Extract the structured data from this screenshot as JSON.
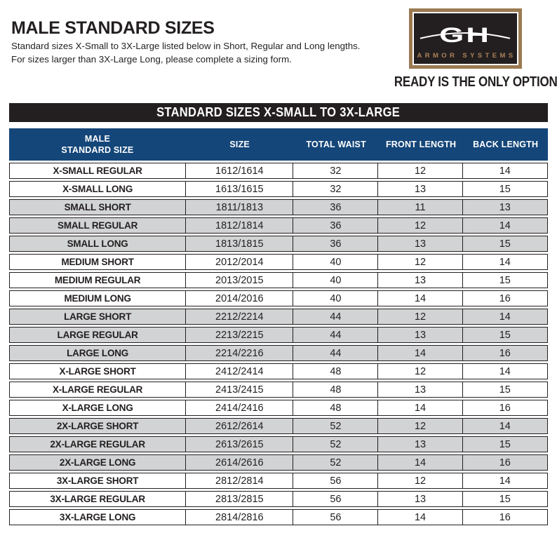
{
  "page": {
    "title": "MALE STANDARD SIZES",
    "subtitle_line1": "Standard sizes X-Small to 3X-Large listed below in Short, Regular and Long lengths.",
    "subtitle_line2": "For sizes larger than 3X-Large Long, please complete a sizing form."
  },
  "logo": {
    "monogram": "GH",
    "name": "ARMOR SYSTEMS",
    "tagline": "READY IS THE ONLY OPTION."
  },
  "table": {
    "band_title": "STANDARD SIZES X-SMALL TO 3X-LARGE",
    "columns": [
      {
        "line1": "MALE",
        "line2": "STANDARD SIZE"
      },
      {
        "label": "SIZE"
      },
      {
        "label": "TOTAL WAIST"
      },
      {
        "label": "FRONT LENGTH"
      },
      {
        "label": "BACK LENGTH"
      }
    ],
    "rows": [
      {
        "standard_size": "X-SMALL REGULAR",
        "size": "1612/1614",
        "total_waist": "32",
        "front_length": "12",
        "back_length": "14",
        "shaded": false
      },
      {
        "standard_size": "X-SMALL LONG",
        "size": "1613/1615",
        "total_waist": "32",
        "front_length": "13",
        "back_length": "15",
        "shaded": false
      },
      {
        "standard_size": "SMALL SHORT",
        "size": "1811/1813",
        "total_waist": "36",
        "front_length": "11",
        "back_length": "13",
        "shaded": true
      },
      {
        "standard_size": "SMALL REGULAR",
        "size": "1812/1814",
        "total_waist": "36",
        "front_length": "12",
        "back_length": "14",
        "shaded": true
      },
      {
        "standard_size": "SMALL LONG",
        "size": "1813/1815",
        "total_waist": "36",
        "front_length": "13",
        "back_length": "15",
        "shaded": true
      },
      {
        "standard_size": "MEDIUM SHORT",
        "size": "2012/2014",
        "total_waist": "40",
        "front_length": "12",
        "back_length": "14",
        "shaded": false
      },
      {
        "standard_size": "MEDIUM REGULAR",
        "size": "2013/2015",
        "total_waist": "40",
        "front_length": "13",
        "back_length": "15",
        "shaded": false
      },
      {
        "standard_size": "MEDIUM LONG",
        "size": "2014/2016",
        "total_waist": "40",
        "front_length": "14",
        "back_length": "16",
        "shaded": false
      },
      {
        "standard_size": "LARGE SHORT",
        "size": "2212/2214",
        "total_waist": "44",
        "front_length": "12",
        "back_length": "14",
        "shaded": true
      },
      {
        "standard_size": "LARGE REGULAR",
        "size": "2213/2215",
        "total_waist": "44",
        "front_length": "13",
        "back_length": "15",
        "shaded": true
      },
      {
        "standard_size": "LARGE LONG",
        "size": "2214/2216",
        "total_waist": "44",
        "front_length": "14",
        "back_length": "16",
        "shaded": true
      },
      {
        "standard_size": "X-LARGE SHORT",
        "size": "2412/2414",
        "total_waist": "48",
        "front_length": "12",
        "back_length": "14",
        "shaded": false
      },
      {
        "standard_size": "X-LARGE REGULAR",
        "size": "2413/2415",
        "total_waist": "48",
        "front_length": "13",
        "back_length": "15",
        "shaded": false
      },
      {
        "standard_size": "X-LARGE LONG",
        "size": "2414/2416",
        "total_waist": "48",
        "front_length": "14",
        "back_length": "16",
        "shaded": false
      },
      {
        "standard_size": "2X-LARGE SHORT",
        "size": "2612/2614",
        "total_waist": "52",
        "front_length": "12",
        "back_length": "14",
        "shaded": true
      },
      {
        "standard_size": "2X-LARGE REGULAR",
        "size": "2613/2615",
        "total_waist": "52",
        "front_length": "13",
        "back_length": "15",
        "shaded": true
      },
      {
        "standard_size": "2X-LARGE LONG",
        "size": "2614/2616",
        "total_waist": "52",
        "front_length": "14",
        "back_length": "16",
        "shaded": true
      },
      {
        "standard_size": "3X-LARGE SHORT",
        "size": "2812/2814",
        "total_waist": "56",
        "front_length": "12",
        "back_length": "14",
        "shaded": false
      },
      {
        "standard_size": "3X-LARGE REGULAR",
        "size": "2813/2815",
        "total_waist": "56",
        "front_length": "13",
        "back_length": "15",
        "shaded": false
      },
      {
        "standard_size": "3X-LARGE LONG",
        "size": "2814/2816",
        "total_waist": "56",
        "front_length": "14",
        "back_length": "16",
        "shaded": false
      }
    ]
  },
  "colors": {
    "navy": "#144679",
    "black": "#231f20",
    "shaded_row": "#d1d3d4",
    "logo_tan": "#9b7a52",
    "logo_tan_text": "#ab8157",
    "text_dark": "#231f20"
  }
}
